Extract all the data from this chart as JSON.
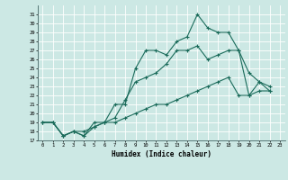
{
  "xlabel": "Humidex (Indice chaleur)",
  "ylabel": "",
  "bg_color": "#cce8e4",
  "grid_color": "#ffffff",
  "line_color": "#1a6b5a",
  "xlim": [
    -0.5,
    23.5
  ],
  "ylim": [
    17,
    32
  ],
  "xticks": [
    0,
    1,
    2,
    3,
    4,
    5,
    6,
    7,
    8,
    9,
    10,
    11,
    12,
    13,
    14,
    15,
    16,
    17,
    18,
    19,
    20,
    21,
    22,
    23
  ],
  "yticks": [
    17,
    18,
    19,
    20,
    21,
    22,
    23,
    24,
    25,
    26,
    27,
    28,
    29,
    30,
    31
  ],
  "series": [
    [
      19.0,
      19.0,
      17.5,
      18.0,
      17.5,
      19.0,
      19.0,
      21.0,
      21.0,
      25.0,
      27.0,
      27.0,
      26.5,
      28.0,
      28.5,
      31.0,
      29.5,
      29.0,
      29.0,
      27.0,
      24.5,
      23.5,
      23.0
    ],
    [
      19.0,
      19.0,
      17.5,
      18.0,
      17.5,
      18.5,
      19.0,
      19.5,
      21.5,
      23.5,
      24.0,
      24.5,
      25.5,
      27.0,
      27.0,
      27.5,
      26.0,
      26.5,
      27.0,
      27.0,
      22.0,
      23.5,
      22.5
    ],
    [
      19.0,
      19.0,
      17.5,
      18.0,
      18.0,
      18.5,
      19.0,
      19.0,
      19.5,
      20.0,
      20.5,
      21.0,
      21.0,
      21.5,
      22.0,
      22.5,
      23.0,
      23.5,
      24.0,
      22.0,
      22.0,
      22.5,
      22.5
    ]
  ],
  "x_series": [
    [
      0,
      1,
      2,
      3,
      4,
      5,
      6,
      7,
      8,
      9,
      10,
      11,
      12,
      13,
      14,
      15,
      16,
      17,
      18,
      19,
      20,
      21,
      22
    ],
    [
      0,
      1,
      2,
      3,
      4,
      5,
      6,
      7,
      8,
      9,
      10,
      11,
      12,
      13,
      14,
      15,
      16,
      17,
      18,
      19,
      20,
      21,
      22
    ],
    [
      0,
      1,
      2,
      3,
      4,
      5,
      6,
      7,
      8,
      9,
      10,
      11,
      12,
      13,
      14,
      15,
      16,
      17,
      18,
      19,
      20,
      21,
      22
    ]
  ]
}
